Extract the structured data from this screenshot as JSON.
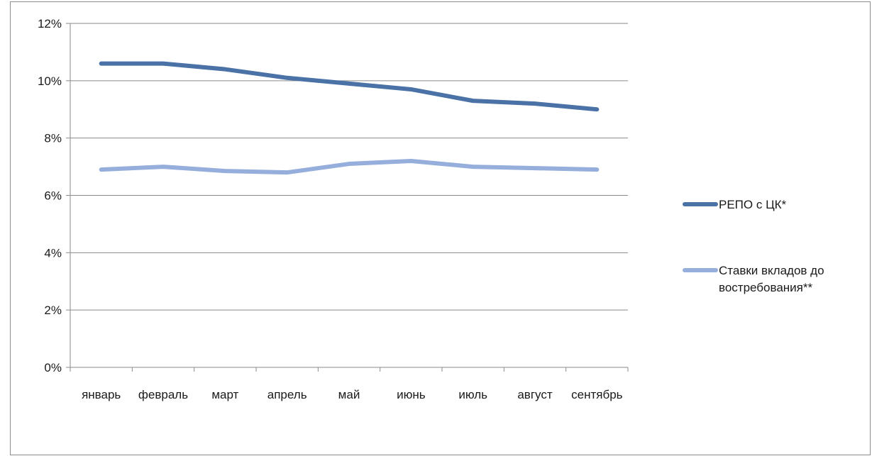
{
  "chart_data": {
    "type": "line",
    "title": "",
    "xlabel": "",
    "ylabel": "",
    "categories": [
      "январь",
      "февраль",
      "март",
      "апрель",
      "май",
      "июнь",
      "июль",
      "август",
      "сентябрь"
    ],
    "y_ticks": [
      "0%",
      "2%",
      "4%",
      "6%",
      "8%",
      "10%",
      "12%"
    ],
    "ylim": [
      0,
      12
    ],
    "y_unit": "%",
    "grid": "horizontal",
    "legend_position": "right",
    "series": [
      {
        "name": "РЕПО с ЦК*",
        "legend_lines": [
          "РЕПО с ЦК*"
        ],
        "color": "#4A72A6",
        "values": [
          10.6,
          10.6,
          10.4,
          10.1,
          9.9,
          9.7,
          9.3,
          9.2,
          9.0
        ]
      },
      {
        "name": "Ставки вкладов до востребования**",
        "legend_lines": [
          "Ставки вкладов до",
          "востребования**"
        ],
        "color": "#95AEDB",
        "values": [
          6.9,
          7.0,
          6.85,
          6.8,
          7.1,
          7.2,
          7.0,
          6.95,
          6.9
        ]
      }
    ]
  }
}
